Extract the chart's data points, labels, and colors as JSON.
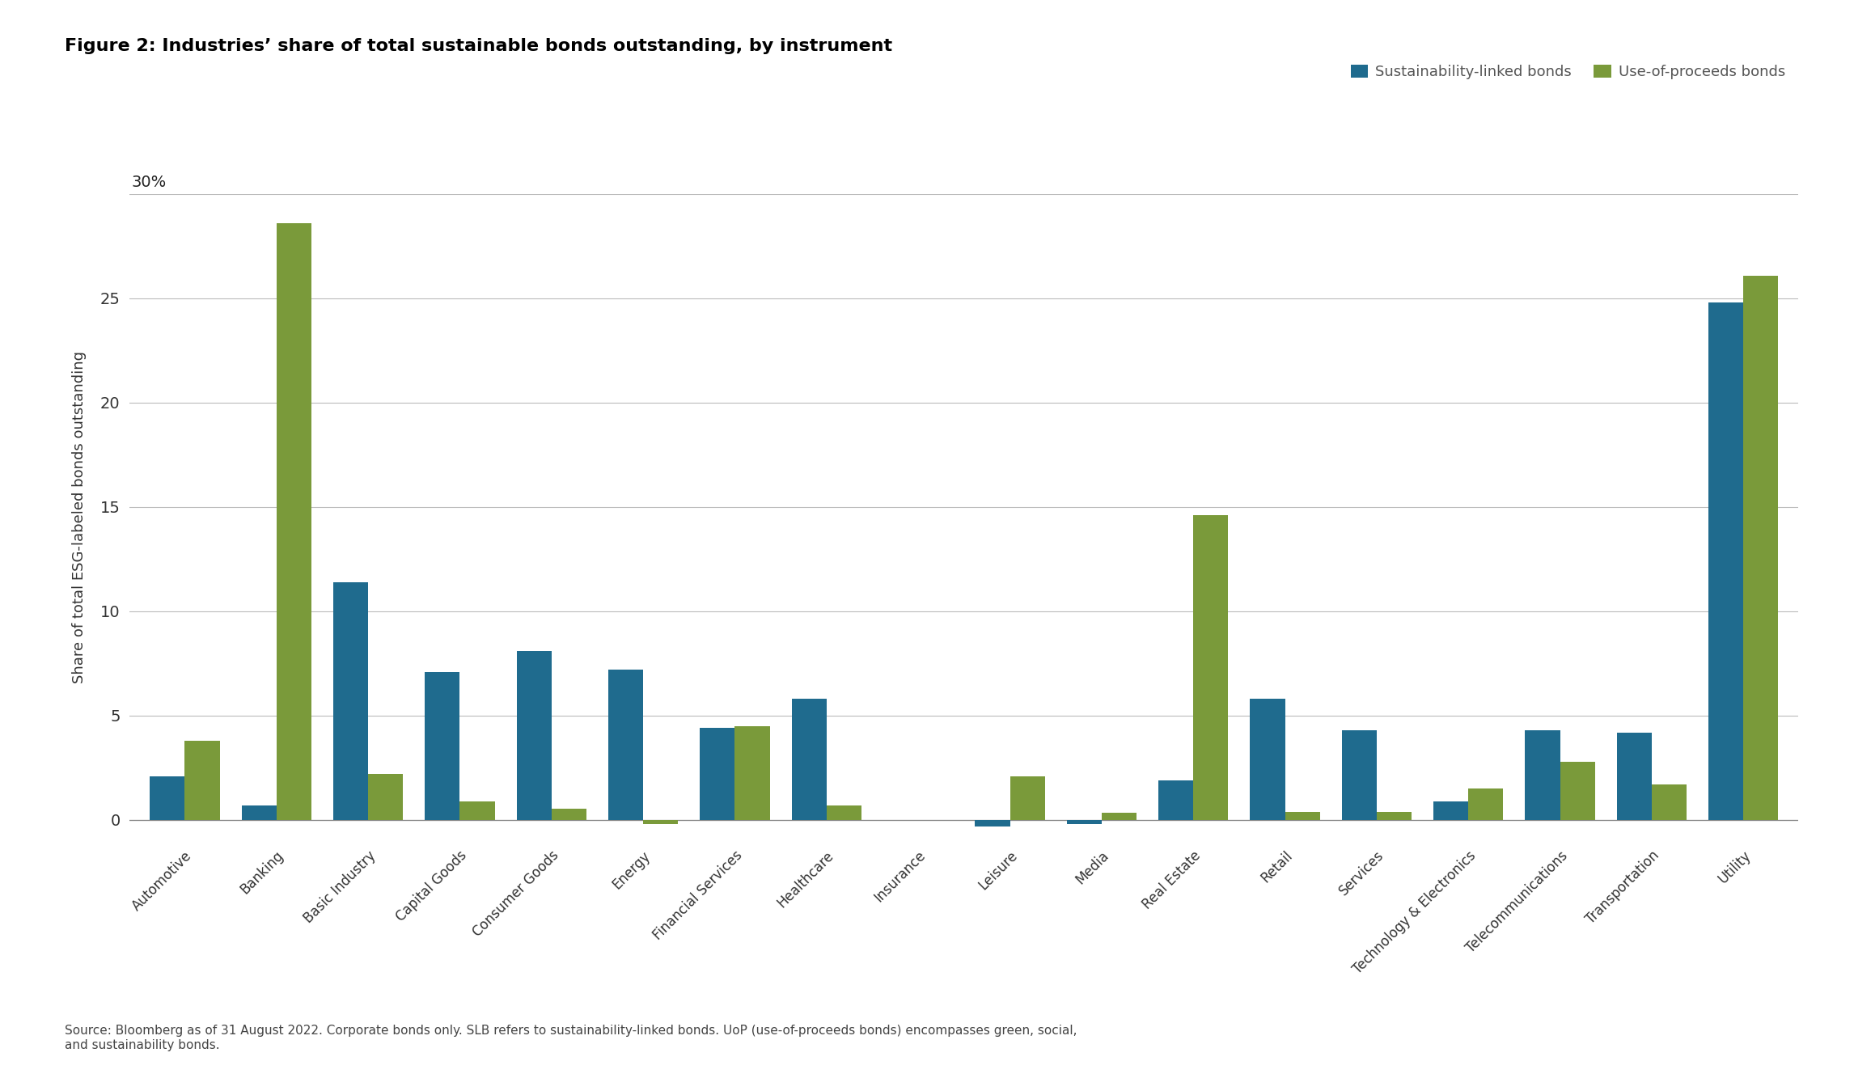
{
  "title": "Figure 2: Industries’ share of total sustainable bonds outstanding, by instrument",
  "ylabel": "Share of total ESG-labeled bonds outstanding",
  "categories": [
    "Automotive",
    "Banking",
    "Basic Industry",
    "Capital Goods",
    "Consumer Goods",
    "Energy",
    "Financial Services",
    "Healthcare",
    "Insurance",
    "Leisure",
    "Media",
    "Real Estate",
    "Retail",
    "Services",
    "Technology & Electronics",
    "Telecommunications",
    "Transportation",
    "Utility"
  ],
  "slb_values": [
    2.1,
    0.7,
    11.4,
    7.1,
    8.1,
    7.2,
    4.4,
    5.8,
    0.0,
    -0.3,
    -0.2,
    1.9,
    5.8,
    4.3,
    0.9,
    4.3,
    4.2,
    24.8
  ],
  "uop_values": [
    3.8,
    28.6,
    2.2,
    0.9,
    0.55,
    -0.2,
    4.5,
    0.7,
    0.0,
    2.1,
    0.35,
    14.6,
    0.4,
    0.4,
    1.5,
    2.8,
    1.7,
    26.1
  ],
  "slb_color": "#1f6b8e",
  "uop_color": "#7a9a3a",
  "slb_label": "Sustainability-linked bonds",
  "uop_label": "Use-of-proceeds bonds",
  "ylim": [
    -1.0,
    30.0
  ],
  "yticks": [
    0,
    5,
    10,
    15,
    20,
    25
  ],
  "background_color": "#ffffff",
  "grid_color": "#bbbbbb",
  "source_text": "Source: Bloomberg as of 31 August 2022. Corporate bonds only. SLB refers to sustainability-linked bonds. UoP (use-of-proceeds bonds) encompasses green, social,\nand sustainability bonds."
}
